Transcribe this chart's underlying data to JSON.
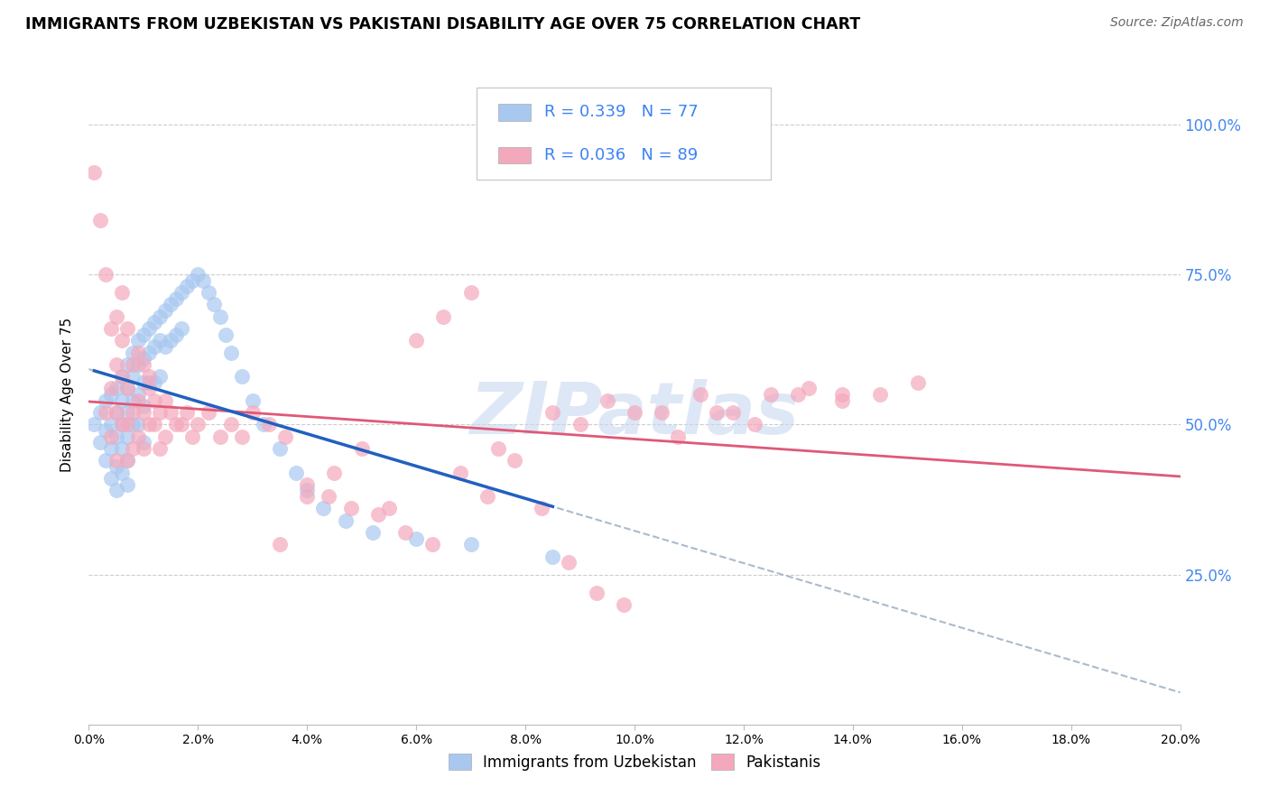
{
  "title": "IMMIGRANTS FROM UZBEKISTAN VS PAKISTANI DISABILITY AGE OVER 75 CORRELATION CHART",
  "source": "Source: ZipAtlas.com",
  "ylabel": "Disability Age Over 75",
  "legend_label1": "Immigrants from Uzbekistan",
  "legend_label2": "Pakistanis",
  "R1": "0.339",
  "N1": "77",
  "R2": "0.036",
  "N2": "89",
  "color_blue": "#A8C8F0",
  "color_pink": "#F4A8BC",
  "watermark": "ZIPatlas",
  "watermark_color": "#C8D8F0",
  "xmin": 0.0,
  "xmax": 0.2,
  "ymin": 0.0,
  "ymax": 1.1,
  "uzbek_x": [
    0.001,
    0.002,
    0.002,
    0.003,
    0.003,
    0.003,
    0.004,
    0.004,
    0.004,
    0.004,
    0.005,
    0.005,
    0.005,
    0.005,
    0.005,
    0.006,
    0.006,
    0.006,
    0.006,
    0.006,
    0.007,
    0.007,
    0.007,
    0.007,
    0.007,
    0.007,
    0.008,
    0.008,
    0.008,
    0.008,
    0.009,
    0.009,
    0.009,
    0.009,
    0.01,
    0.01,
    0.01,
    0.01,
    0.01,
    0.011,
    0.011,
    0.011,
    0.012,
    0.012,
    0.012,
    0.013,
    0.013,
    0.013,
    0.014,
    0.014,
    0.015,
    0.015,
    0.016,
    0.016,
    0.017,
    0.017,
    0.018,
    0.019,
    0.02,
    0.021,
    0.022,
    0.023,
    0.024,
    0.025,
    0.026,
    0.028,
    0.03,
    0.032,
    0.035,
    0.038,
    0.04,
    0.043,
    0.047,
    0.052,
    0.06,
    0.07,
    0.085
  ],
  "uzbek_y": [
    0.5,
    0.52,
    0.47,
    0.54,
    0.49,
    0.44,
    0.55,
    0.5,
    0.46,
    0.41,
    0.56,
    0.52,
    0.48,
    0.43,
    0.39,
    0.58,
    0.54,
    0.5,
    0.46,
    0.42,
    0.6,
    0.56,
    0.52,
    0.48,
    0.44,
    0.4,
    0.62,
    0.58,
    0.54,
    0.5,
    0.64,
    0.6,
    0.55,
    0.5,
    0.65,
    0.61,
    0.57,
    0.53,
    0.47,
    0.66,
    0.62,
    0.57,
    0.67,
    0.63,
    0.57,
    0.68,
    0.64,
    0.58,
    0.69,
    0.63,
    0.7,
    0.64,
    0.71,
    0.65,
    0.72,
    0.66,
    0.73,
    0.74,
    0.75,
    0.74,
    0.72,
    0.7,
    0.68,
    0.65,
    0.62,
    0.58,
    0.54,
    0.5,
    0.46,
    0.42,
    0.39,
    0.36,
    0.34,
    0.32,
    0.31,
    0.3,
    0.28
  ],
  "pak_x": [
    0.001,
    0.002,
    0.003,
    0.003,
    0.004,
    0.004,
    0.004,
    0.005,
    0.005,
    0.005,
    0.005,
    0.006,
    0.006,
    0.006,
    0.007,
    0.007,
    0.007,
    0.007,
    0.008,
    0.008,
    0.008,
    0.009,
    0.009,
    0.009,
    0.01,
    0.01,
    0.01,
    0.011,
    0.011,
    0.011,
    0.012,
    0.012,
    0.013,
    0.013,
    0.014,
    0.014,
    0.015,
    0.016,
    0.017,
    0.018,
    0.019,
    0.02,
    0.022,
    0.024,
    0.026,
    0.028,
    0.03,
    0.033,
    0.036,
    0.04,
    0.044,
    0.048,
    0.053,
    0.058,
    0.063,
    0.068,
    0.073,
    0.078,
    0.083,
    0.088,
    0.093,
    0.098,
    0.105,
    0.112,
    0.118,
    0.125,
    0.132,
    0.138,
    0.145,
    0.152,
    0.06,
    0.065,
    0.07,
    0.075,
    0.035,
    0.04,
    0.045,
    0.05,
    0.055,
    0.006,
    0.085,
    0.09,
    0.095,
    0.1,
    0.108,
    0.115,
    0.122,
    0.13,
    0.138
  ],
  "pak_y": [
    0.92,
    0.84,
    0.52,
    0.75,
    0.56,
    0.66,
    0.48,
    0.6,
    0.52,
    0.68,
    0.44,
    0.58,
    0.5,
    0.64,
    0.56,
    0.66,
    0.5,
    0.44,
    0.6,
    0.52,
    0.46,
    0.62,
    0.54,
    0.48,
    0.6,
    0.52,
    0.46,
    0.58,
    0.5,
    0.56,
    0.54,
    0.5,
    0.52,
    0.46,
    0.54,
    0.48,
    0.52,
    0.5,
    0.5,
    0.52,
    0.48,
    0.5,
    0.52,
    0.48,
    0.5,
    0.48,
    0.52,
    0.5,
    0.48,
    0.4,
    0.38,
    0.36,
    0.35,
    0.32,
    0.3,
    0.42,
    0.38,
    0.44,
    0.36,
    0.27,
    0.22,
    0.2,
    0.52,
    0.55,
    0.52,
    0.55,
    0.56,
    0.54,
    0.55,
    0.57,
    0.64,
    0.68,
    0.72,
    0.46,
    0.3,
    0.38,
    0.42,
    0.46,
    0.36,
    0.72,
    0.52,
    0.5,
    0.54,
    0.52,
    0.48,
    0.52,
    0.5,
    0.55,
    0.55
  ]
}
